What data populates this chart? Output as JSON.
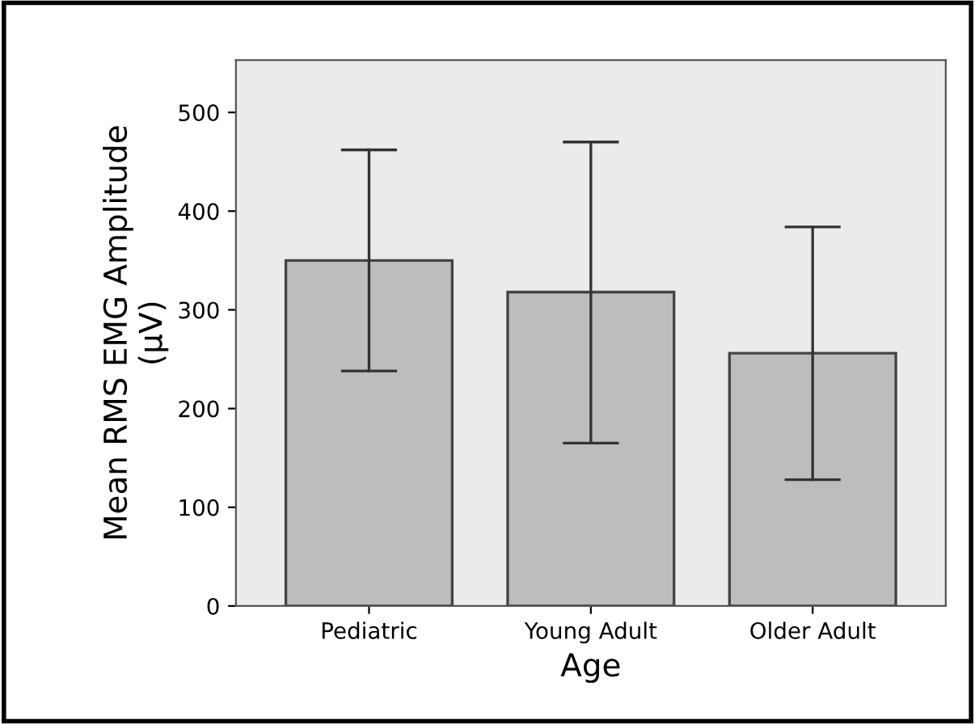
{
  "chart_data": {
    "type": "bar",
    "xlabel": "Age",
    "ylabel": "Mean RMS EMG Amplitude\n(μV)",
    "categories": [
      "Pediatric",
      "Young Adult",
      "Older Adult"
    ],
    "values": [
      350,
      318,
      256
    ],
    "errors": [
      [
        238,
        462
      ],
      [
        165,
        470
      ],
      [
        128,
        384
      ]
    ],
    "color": "#bdbdbd",
    "ylim": [
      0,
      553
    ],
    "yticks": [
      0,
      100,
      200,
      300,
      400,
      500
    ],
    "grid": false
  }
}
